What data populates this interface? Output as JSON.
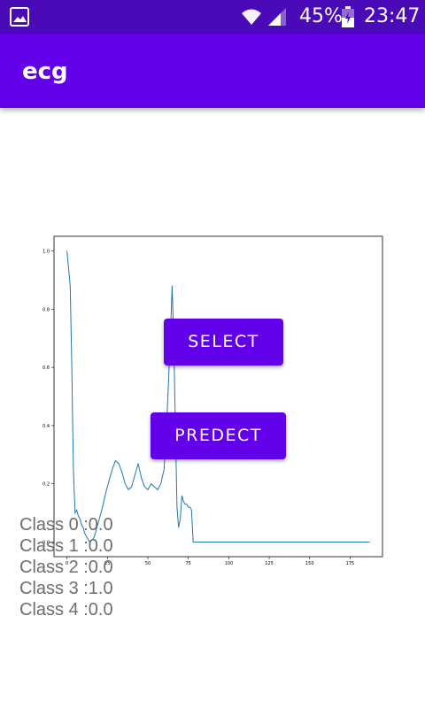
{
  "status_bar": {
    "battery_percent": "45%",
    "time": "23:47",
    "icons": [
      "gallery-icon",
      "wifi-icon",
      "signal-icon",
      "battery-icon"
    ]
  },
  "app_bar": {
    "title": "ecg"
  },
  "buttons": {
    "select_label": "SELECT",
    "predict_label": "PREDECT"
  },
  "results": [
    "Class 0 :0.0",
    "Class 1 :0.0",
    "Class 2 :0.0",
    "Class 3 :1.0",
    "Class 4 :0.0"
  ],
  "colors": {
    "status_bar": "#4a0ab8",
    "primary": "#6200ea",
    "line": "#1f77b4"
  },
  "chart_data": {
    "type": "line",
    "xlim": [
      -8,
      195
    ],
    "ylim": [
      -0.05,
      1.05
    ],
    "x_ticks": [
      0,
      25,
      50,
      75,
      100,
      125,
      150,
      175
    ],
    "y_ticks": [
      0.0,
      0.2,
      0.4,
      0.6,
      0.8,
      1.0
    ],
    "x_tick_labels": [
      "0",
      "25",
      "50",
      "75",
      "100",
      "125",
      "150",
      "175"
    ],
    "y_tick_labels": [
      "0.0",
      "0.2",
      "0.4",
      "0.6",
      "0.8",
      "1.0"
    ],
    "series": [
      {
        "x": [
          0,
          2,
          3,
          4,
          5,
          6,
          7,
          8,
          9,
          10,
          11,
          12,
          13,
          14,
          15,
          16,
          17,
          18,
          19,
          20,
          22,
          24,
          26,
          28,
          30,
          32,
          34,
          36,
          38,
          40,
          42,
          44,
          46,
          48,
          50,
          52,
          54,
          56,
          58,
          60,
          62,
          64,
          65,
          66,
          67,
          68,
          69,
          70,
          71,
          72,
          73,
          74,
          75,
          76,
          77,
          78,
          79,
          80,
          90,
          100,
          110,
          120,
          130,
          140,
          150,
          160,
          170,
          180,
          187
        ],
        "y": [
          1.0,
          0.88,
          0.6,
          0.25,
          0.1,
          0.11,
          0.09,
          0.08,
          0.06,
          0.05,
          0.03,
          0.02,
          0.01,
          0.0,
          0.005,
          0.01,
          0.02,
          0.04,
          0.06,
          0.08,
          0.12,
          0.17,
          0.21,
          0.25,
          0.28,
          0.27,
          0.24,
          0.2,
          0.18,
          0.19,
          0.23,
          0.27,
          0.22,
          0.19,
          0.18,
          0.2,
          0.19,
          0.18,
          0.2,
          0.25,
          0.45,
          0.72,
          0.88,
          0.7,
          0.4,
          0.12,
          0.05,
          0.08,
          0.16,
          0.14,
          0.13,
          0.13,
          0.12,
          0.12,
          0.11,
          0.0,
          0.0,
          0.0,
          0.0,
          0.0,
          0.0,
          0.0,
          0.0,
          0.0,
          0.0,
          0.0,
          0.0,
          0.0,
          0.0
        ]
      }
    ]
  }
}
